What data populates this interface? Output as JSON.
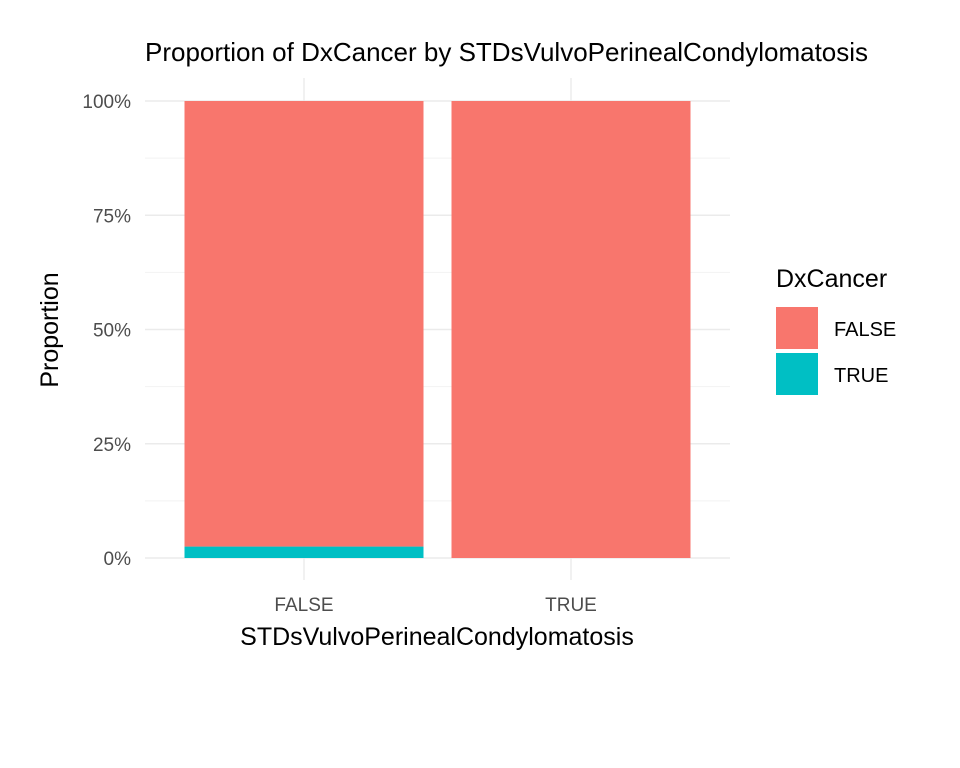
{
  "chart_data": {
    "type": "bar",
    "stacked": true,
    "title": "Proportion of DxCancer by STDsVulvoPerinealCondylomatosis",
    "xlabel": "STDsVulvoPerinealCondylomatosis",
    "ylabel": "Proportion",
    "categories": [
      "FALSE",
      "TRUE"
    ],
    "series": [
      {
        "name": "TRUE",
        "values": [
          0.025,
          0.0
        ],
        "color": "#00BFC4"
      },
      {
        "name": "FALSE",
        "values": [
          0.975,
          1.0
        ],
        "color": "#F8766D"
      }
    ],
    "ylim": [
      0,
      1
    ],
    "yticks": [
      0,
      0.25,
      0.5,
      0.75,
      1.0
    ],
    "ytick_labels": [
      "0%",
      "25%",
      "50%",
      "75%",
      "100%"
    ],
    "grid": true,
    "legend": {
      "title": "DxCancer",
      "position": "right",
      "entries": [
        {
          "label": "FALSE",
          "color": "#F8766D"
        },
        {
          "label": "TRUE",
          "color": "#00BFC4"
        }
      ]
    }
  }
}
